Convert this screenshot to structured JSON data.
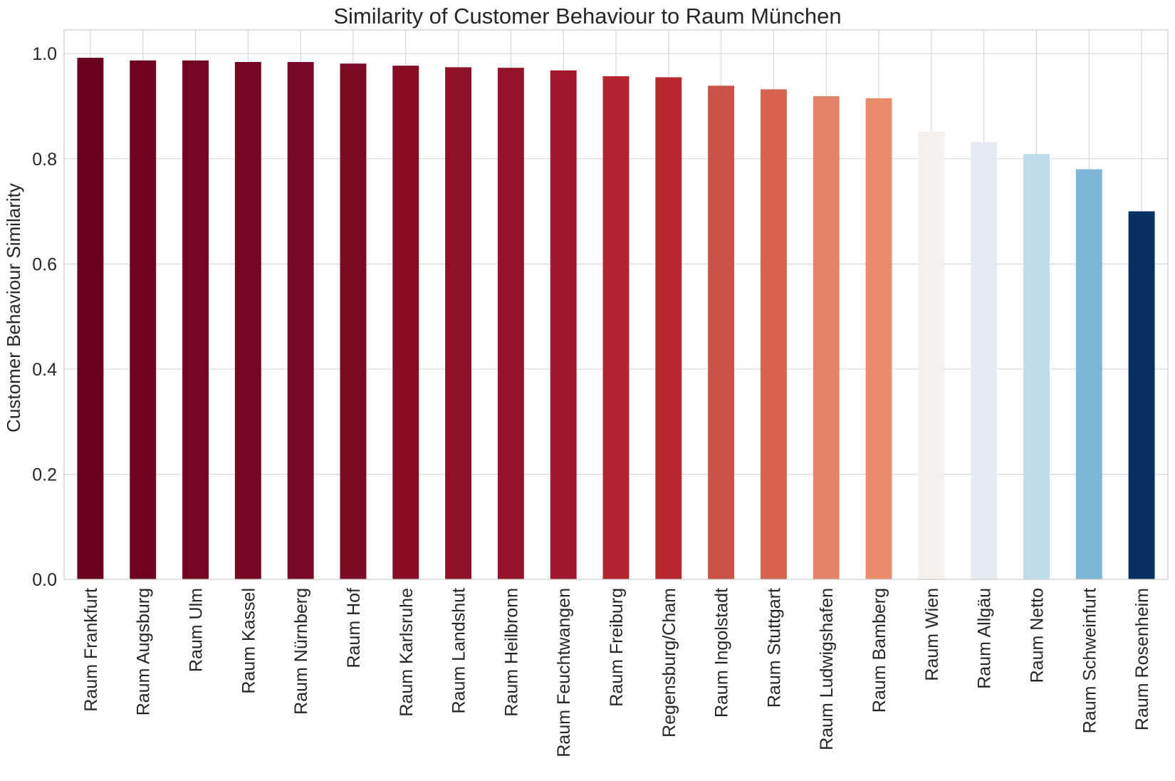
{
  "chart_data": {
    "type": "bar",
    "title": "Similarity of Customer Behaviour to Raum München",
    "xlabel": "",
    "ylabel": "Customer Behaviour Similarity",
    "ylim": [
      0,
      1.045
    ],
    "yticks": [
      "0.0",
      "0.2",
      "0.4",
      "0.6",
      "0.8",
      "1.0"
    ],
    "ytick_values": [
      0,
      0.2,
      0.4,
      0.6,
      0.8,
      1.0
    ],
    "grid": true,
    "legend": "none",
    "categories": [
      "Raum Frankfurt",
      "Raum Augsburg",
      "Raum Ulm",
      "Raum Kassel",
      "Raum Nürnberg",
      "Raum Hof",
      "Raum Karlsruhe",
      "Raum Landshut",
      "Raum Heilbronn",
      "Raum Feuchtwangen",
      "Raum Freiburg",
      "Regensburg/Cham",
      "Raum Ingolstadt",
      "Raum Stuttgart",
      "Raum Ludwigshafen",
      "Raum Bamberg",
      "Raum Wien",
      "Raum Allgäu",
      "Raum Netto",
      "Raum Schweinfurt",
      "Raum Rosenheim"
    ],
    "values": [
      0.992,
      0.987,
      0.987,
      0.984,
      0.984,
      0.981,
      0.977,
      0.974,
      0.973,
      0.968,
      0.957,
      0.955,
      0.939,
      0.932,
      0.919,
      0.915,
      0.851,
      0.832,
      0.809,
      0.78,
      0.7
    ],
    "colors": [
      "#67001f",
      "#6f0421",
      "#730622",
      "#760723",
      "#790824",
      "#7e0b25",
      "#850e26",
      "#8d1127",
      "#931428",
      "#a1172b",
      "#b2242e",
      "#b8292f",
      "#cb5246",
      "#d6654f",
      "#e3846a",
      "#e98c6e",
      "#f6f0ed",
      "#e5ecf4",
      "#c0dcea",
      "#7db6d7",
      "#053061"
    ]
  }
}
